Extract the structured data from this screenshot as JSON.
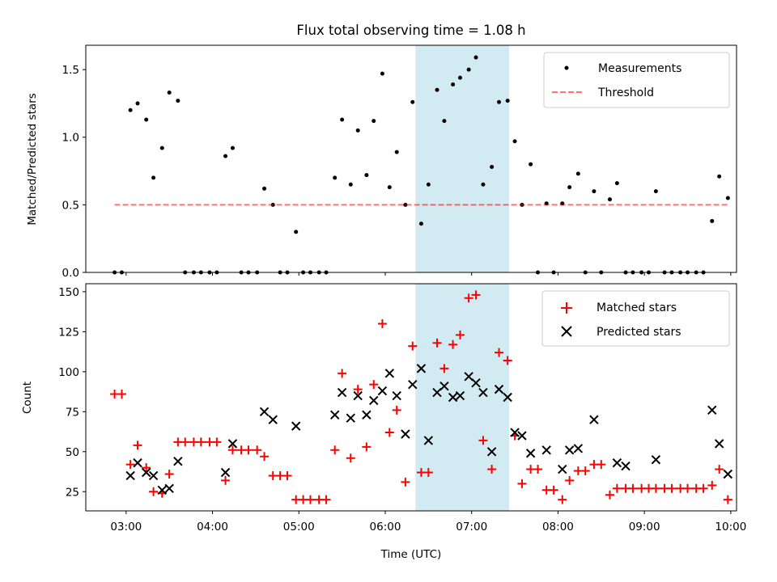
{
  "chart_data": [
    {
      "type": "scatter",
      "title": "Flux total observing time = 1.08 h",
      "xlabel": "",
      "ylabel": "Matched/Predicted stars",
      "xlim": [
        "02:32",
        "10:04"
      ],
      "ylim": [
        0,
        1.68
      ],
      "x_ticks": [
        "03:00",
        "04:00",
        "05:00",
        "06:00",
        "07:00",
        "08:00",
        "09:00",
        "10:00"
      ],
      "y_ticks": [
        "0.0",
        "0.5",
        "1.0",
        "1.5"
      ],
      "highlight_span": {
        "start": "06:21",
        "end": "07:26",
        "color": "#add8e6"
      },
      "grid": false,
      "legend": {
        "position": "top-right",
        "entries": [
          "Measurements",
          "Threshold"
        ]
      },
      "series": [
        {
          "name": "Measurements",
          "color": "#000000",
          "marker": "dot",
          "points": [
            [
              "02:52",
              0
            ],
            [
              "02:57",
              0
            ],
            [
              "03:03",
              1.2
            ],
            [
              "03:08",
              1.25
            ],
            [
              "03:14",
              1.13
            ],
            [
              "03:19",
              0.7
            ],
            [
              "03:25",
              0.92
            ],
            [
              "03:30",
              1.33
            ],
            [
              "03:36",
              1.27
            ],
            [
              "03:41",
              0
            ],
            [
              "03:47",
              0
            ],
            [
              "03:52",
              0
            ],
            [
              "03:58",
              0
            ],
            [
              "04:03",
              0
            ],
            [
              "04:09",
              0.86
            ],
            [
              "04:14",
              0.92
            ],
            [
              "04:20",
              0
            ],
            [
              "04:25",
              0
            ],
            [
              "04:31",
              0
            ],
            [
              "04:36",
              0.62
            ],
            [
              "04:42",
              0.5
            ],
            [
              "04:47",
              0
            ],
            [
              "04:52",
              0
            ],
            [
              "04:58",
              0.3
            ],
            [
              "05:03",
              0
            ],
            [
              "05:08",
              0
            ],
            [
              "05:14",
              0
            ],
            [
              "05:19",
              0
            ],
            [
              "05:25",
              0.7
            ],
            [
              "05:30",
              1.13
            ],
            [
              "05:36",
              0.65
            ],
            [
              "05:41",
              1.05
            ],
            [
              "05:47",
              0.72
            ],
            [
              "05:52",
              1.12
            ],
            [
              "05:58",
              1.47
            ],
            [
              "06:03",
              0.63
            ],
            [
              "06:08",
              0.89
            ],
            [
              "06:14",
              0.5
            ],
            [
              "06:19",
              1.26
            ],
            [
              "06:25",
              0.36
            ],
            [
              "06:30",
              0.65
            ],
            [
              "06:36",
              1.35
            ],
            [
              "06:41",
              1.12
            ],
            [
              "06:47",
              1.39
            ],
            [
              "06:52",
              1.44
            ],
            [
              "06:58",
              1.5
            ],
            [
              "07:03",
              1.59
            ],
            [
              "07:08",
              0.65
            ],
            [
              "07:14",
              0.78
            ],
            [
              "07:19",
              1.26
            ],
            [
              "07:25",
              1.27
            ],
            [
              "07:30",
              0.97
            ],
            [
              "07:35",
              0.5
            ],
            [
              "07:41",
              0.8
            ],
            [
              "07:46",
              0
            ],
            [
              "07:52",
              0.51
            ],
            [
              "07:57",
              0
            ],
            [
              "08:03",
              0.51
            ],
            [
              "08:08",
              0.63
            ],
            [
              "08:14",
              0.73
            ],
            [
              "08:19",
              0
            ],
            [
              "08:25",
              0.6
            ],
            [
              "08:30",
              0
            ],
            [
              "08:36",
              0.54
            ],
            [
              "08:41",
              0.66
            ],
            [
              "08:47",
              0
            ],
            [
              "08:52",
              0
            ],
            [
              "08:58",
              0
            ],
            [
              "09:03",
              0
            ],
            [
              "09:08",
              0.6
            ],
            [
              "09:14",
              0
            ],
            [
              "09:19",
              0
            ],
            [
              "09:25",
              0
            ],
            [
              "09:30",
              0
            ],
            [
              "09:36",
              0
            ],
            [
              "09:41",
              0
            ],
            [
              "09:47",
              0.38
            ],
            [
              "09:52",
              0.71
            ],
            [
              "09:58",
              0.55
            ]
          ]
        },
        {
          "name": "Threshold",
          "color": "#ff0000",
          "style": "dashed-line",
          "points": [
            [
              "02:52",
              0.5
            ],
            [
              "09:58",
              0.5
            ]
          ]
        }
      ]
    },
    {
      "type": "scatter",
      "title": "",
      "xlabel": "Time (UTC)",
      "ylabel": "Count",
      "xlim": [
        "02:32",
        "10:04"
      ],
      "ylim": [
        13,
        155
      ],
      "x_ticks": [
        "03:00",
        "04:00",
        "05:00",
        "06:00",
        "07:00",
        "08:00",
        "09:00",
        "10:00"
      ],
      "y_ticks": [
        "25",
        "50",
        "75",
        "100",
        "125",
        "150"
      ],
      "highlight_span": {
        "start": "06:21",
        "end": "07:26",
        "color": "#add8e6"
      },
      "grid": false,
      "legend": {
        "position": "top-right",
        "entries": [
          "Matched stars",
          "Predicted stars"
        ]
      },
      "series": [
        {
          "name": "Matched stars",
          "color": "#ff0000",
          "marker": "plus",
          "points": [
            [
              "02:52",
              86
            ],
            [
              "02:57",
              86
            ],
            [
              "03:03",
              42
            ],
            [
              "03:08",
              54
            ],
            [
              "03:14",
              40
            ],
            [
              "03:19",
              25
            ],
            [
              "03:25",
              24
            ],
            [
              "03:30",
              36
            ],
            [
              "03:36",
              56
            ],
            [
              "03:41",
              56
            ],
            [
              "03:47",
              56
            ],
            [
              "03:52",
              56
            ],
            [
              "03:58",
              56
            ],
            [
              "04:03",
              56
            ],
            [
              "04:09",
              32
            ],
            [
              "04:14",
              51
            ],
            [
              "04:20",
              51
            ],
            [
              "04:25",
              51
            ],
            [
              "04:31",
              51
            ],
            [
              "04:36",
              47
            ],
            [
              "04:42",
              35
            ],
            [
              "04:47",
              35
            ],
            [
              "04:52",
              35
            ],
            [
              "04:58",
              20
            ],
            [
              "05:03",
              20
            ],
            [
              "05:08",
              20
            ],
            [
              "05:14",
              20
            ],
            [
              "05:19",
              20
            ],
            [
              "05:25",
              51
            ],
            [
              "05:30",
              99
            ],
            [
              "05:36",
              46
            ],
            [
              "05:41",
              89
            ],
            [
              "05:47",
              53
            ],
            [
              "05:52",
              92
            ],
            [
              "05:58",
              130
            ],
            [
              "06:03",
              62
            ],
            [
              "06:08",
              76
            ],
            [
              "06:14",
              31
            ],
            [
              "06:19",
              116
            ],
            [
              "06:25",
              37
            ],
            [
              "06:30",
              37
            ],
            [
              "06:36",
              118
            ],
            [
              "06:41",
              102
            ],
            [
              "06:47",
              117
            ],
            [
              "06:52",
              123
            ],
            [
              "06:58",
              146
            ],
            [
              "07:03",
              148
            ],
            [
              "07:08",
              57
            ],
            [
              "07:14",
              39
            ],
            [
              "07:19",
              112
            ],
            [
              "07:25",
              107
            ],
            [
              "07:30",
              60
            ],
            [
              "07:35",
              30
            ],
            [
              "07:41",
              39
            ],
            [
              "07:46",
              39
            ],
            [
              "07:52",
              26
            ],
            [
              "07:57",
              26
            ],
            [
              "08:03",
              20
            ],
            [
              "08:08",
              32
            ],
            [
              "08:14",
              38
            ],
            [
              "08:19",
              38
            ],
            [
              "08:25",
              42
            ],
            [
              "08:30",
              42
            ],
            [
              "08:36",
              23
            ],
            [
              "08:41",
              27
            ],
            [
              "08:47",
              27
            ],
            [
              "08:52",
              27
            ],
            [
              "08:58",
              27
            ],
            [
              "09:03",
              27
            ],
            [
              "09:08",
              27
            ],
            [
              "09:14",
              27
            ],
            [
              "09:19",
              27
            ],
            [
              "09:25",
              27
            ],
            [
              "09:30",
              27
            ],
            [
              "09:36",
              27
            ],
            [
              "09:41",
              27
            ],
            [
              "09:47",
              29
            ],
            [
              "09:52",
              39
            ],
            [
              "09:58",
              20
            ]
          ]
        },
        {
          "name": "Predicted stars",
          "color": "#000000",
          "marker": "x",
          "points": [
            [
              "03:03",
              35
            ],
            [
              "03:08",
              43
            ],
            [
              "03:14",
              37
            ],
            [
              "03:19",
              35
            ],
            [
              "03:25",
              26
            ],
            [
              "03:30",
              27
            ],
            [
              "03:36",
              44
            ],
            [
              "04:09",
              37
            ],
            [
              "04:14",
              55
            ],
            [
              "04:36",
              75
            ],
            [
              "04:42",
              70
            ],
            [
              "04:58",
              66
            ],
            [
              "05:25",
              73
            ],
            [
              "05:30",
              87
            ],
            [
              "05:36",
              71
            ],
            [
              "05:41",
              85
            ],
            [
              "05:47",
              73
            ],
            [
              "05:52",
              82
            ],
            [
              "05:58",
              88
            ],
            [
              "06:03",
              99
            ],
            [
              "06:08",
              85
            ],
            [
              "06:14",
              61
            ],
            [
              "06:19",
              92
            ],
            [
              "06:25",
              102
            ],
            [
              "06:30",
              57
            ],
            [
              "06:36",
              87
            ],
            [
              "06:41",
              91
            ],
            [
              "06:47",
              84
            ],
            [
              "06:52",
              85
            ],
            [
              "06:58",
              97
            ],
            [
              "07:03",
              93
            ],
            [
              "07:08",
              87
            ],
            [
              "07:14",
              50
            ],
            [
              "07:19",
              89
            ],
            [
              "07:25",
              84
            ],
            [
              "07:30",
              62
            ],
            [
              "07:35",
              60
            ],
            [
              "07:41",
              49
            ],
            [
              "07:52",
              51
            ],
            [
              "08:03",
              39
            ],
            [
              "08:08",
              51
            ],
            [
              "08:14",
              52
            ],
            [
              "08:25",
              70
            ],
            [
              "08:41",
              43
            ],
            [
              "08:47",
              41
            ],
            [
              "09:08",
              45
            ],
            [
              "09:47",
              76
            ],
            [
              "09:52",
              55
            ],
            [
              "09:58",
              36
            ]
          ]
        }
      ]
    }
  ]
}
